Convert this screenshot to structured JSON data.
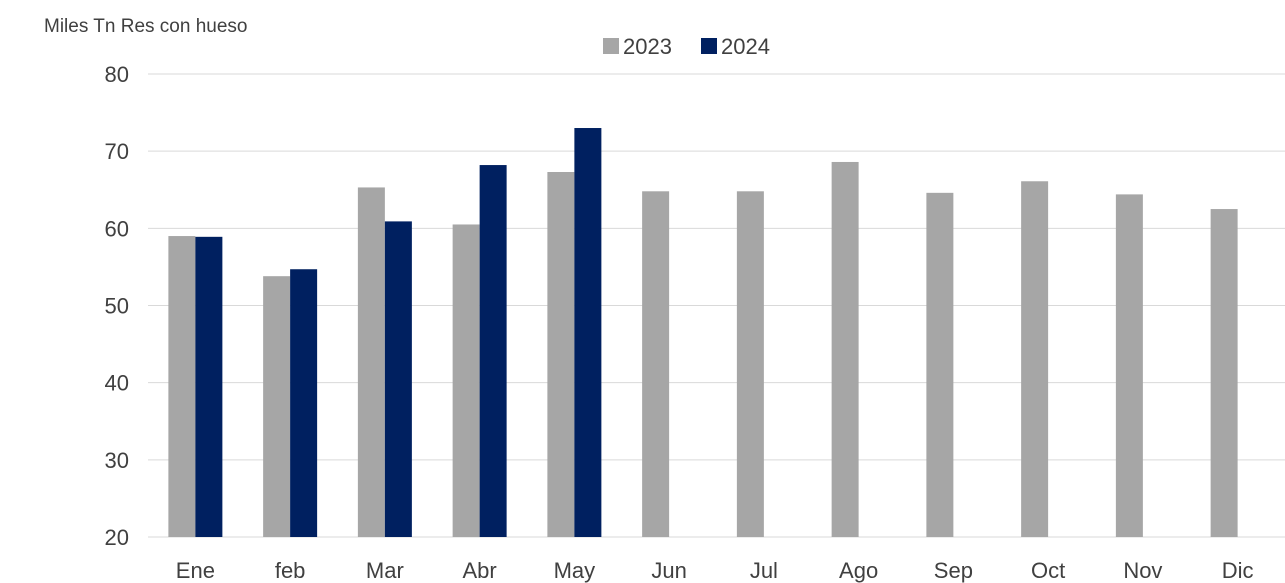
{
  "chart_data": {
    "type": "bar",
    "unit_label": "Miles Tn Res con hueso",
    "categories": [
      "Ene",
      "feb",
      "Mar",
      "Abr",
      "May",
      "Jun",
      "Jul",
      "Ago",
      "Sep",
      "Oct",
      "Nov",
      "Dic"
    ],
    "series": [
      {
        "name": "2023",
        "color": "#a6a6a6",
        "values": [
          59.0,
          53.8,
          65.3,
          60.5,
          67.3,
          64.8,
          64.8,
          68.6,
          64.6,
          66.1,
          64.4,
          62.5
        ]
      },
      {
        "name": "2024",
        "color": "#002060",
        "values": [
          58.9,
          54.7,
          60.9,
          68.2,
          73.0,
          null,
          null,
          null,
          null,
          null,
          null,
          null
        ]
      }
    ],
    "ylim": [
      20,
      80
    ],
    "yticks": [
      20,
      30,
      40,
      50,
      60,
      70,
      80
    ],
    "grid": true,
    "legend_position": "top-center"
  }
}
